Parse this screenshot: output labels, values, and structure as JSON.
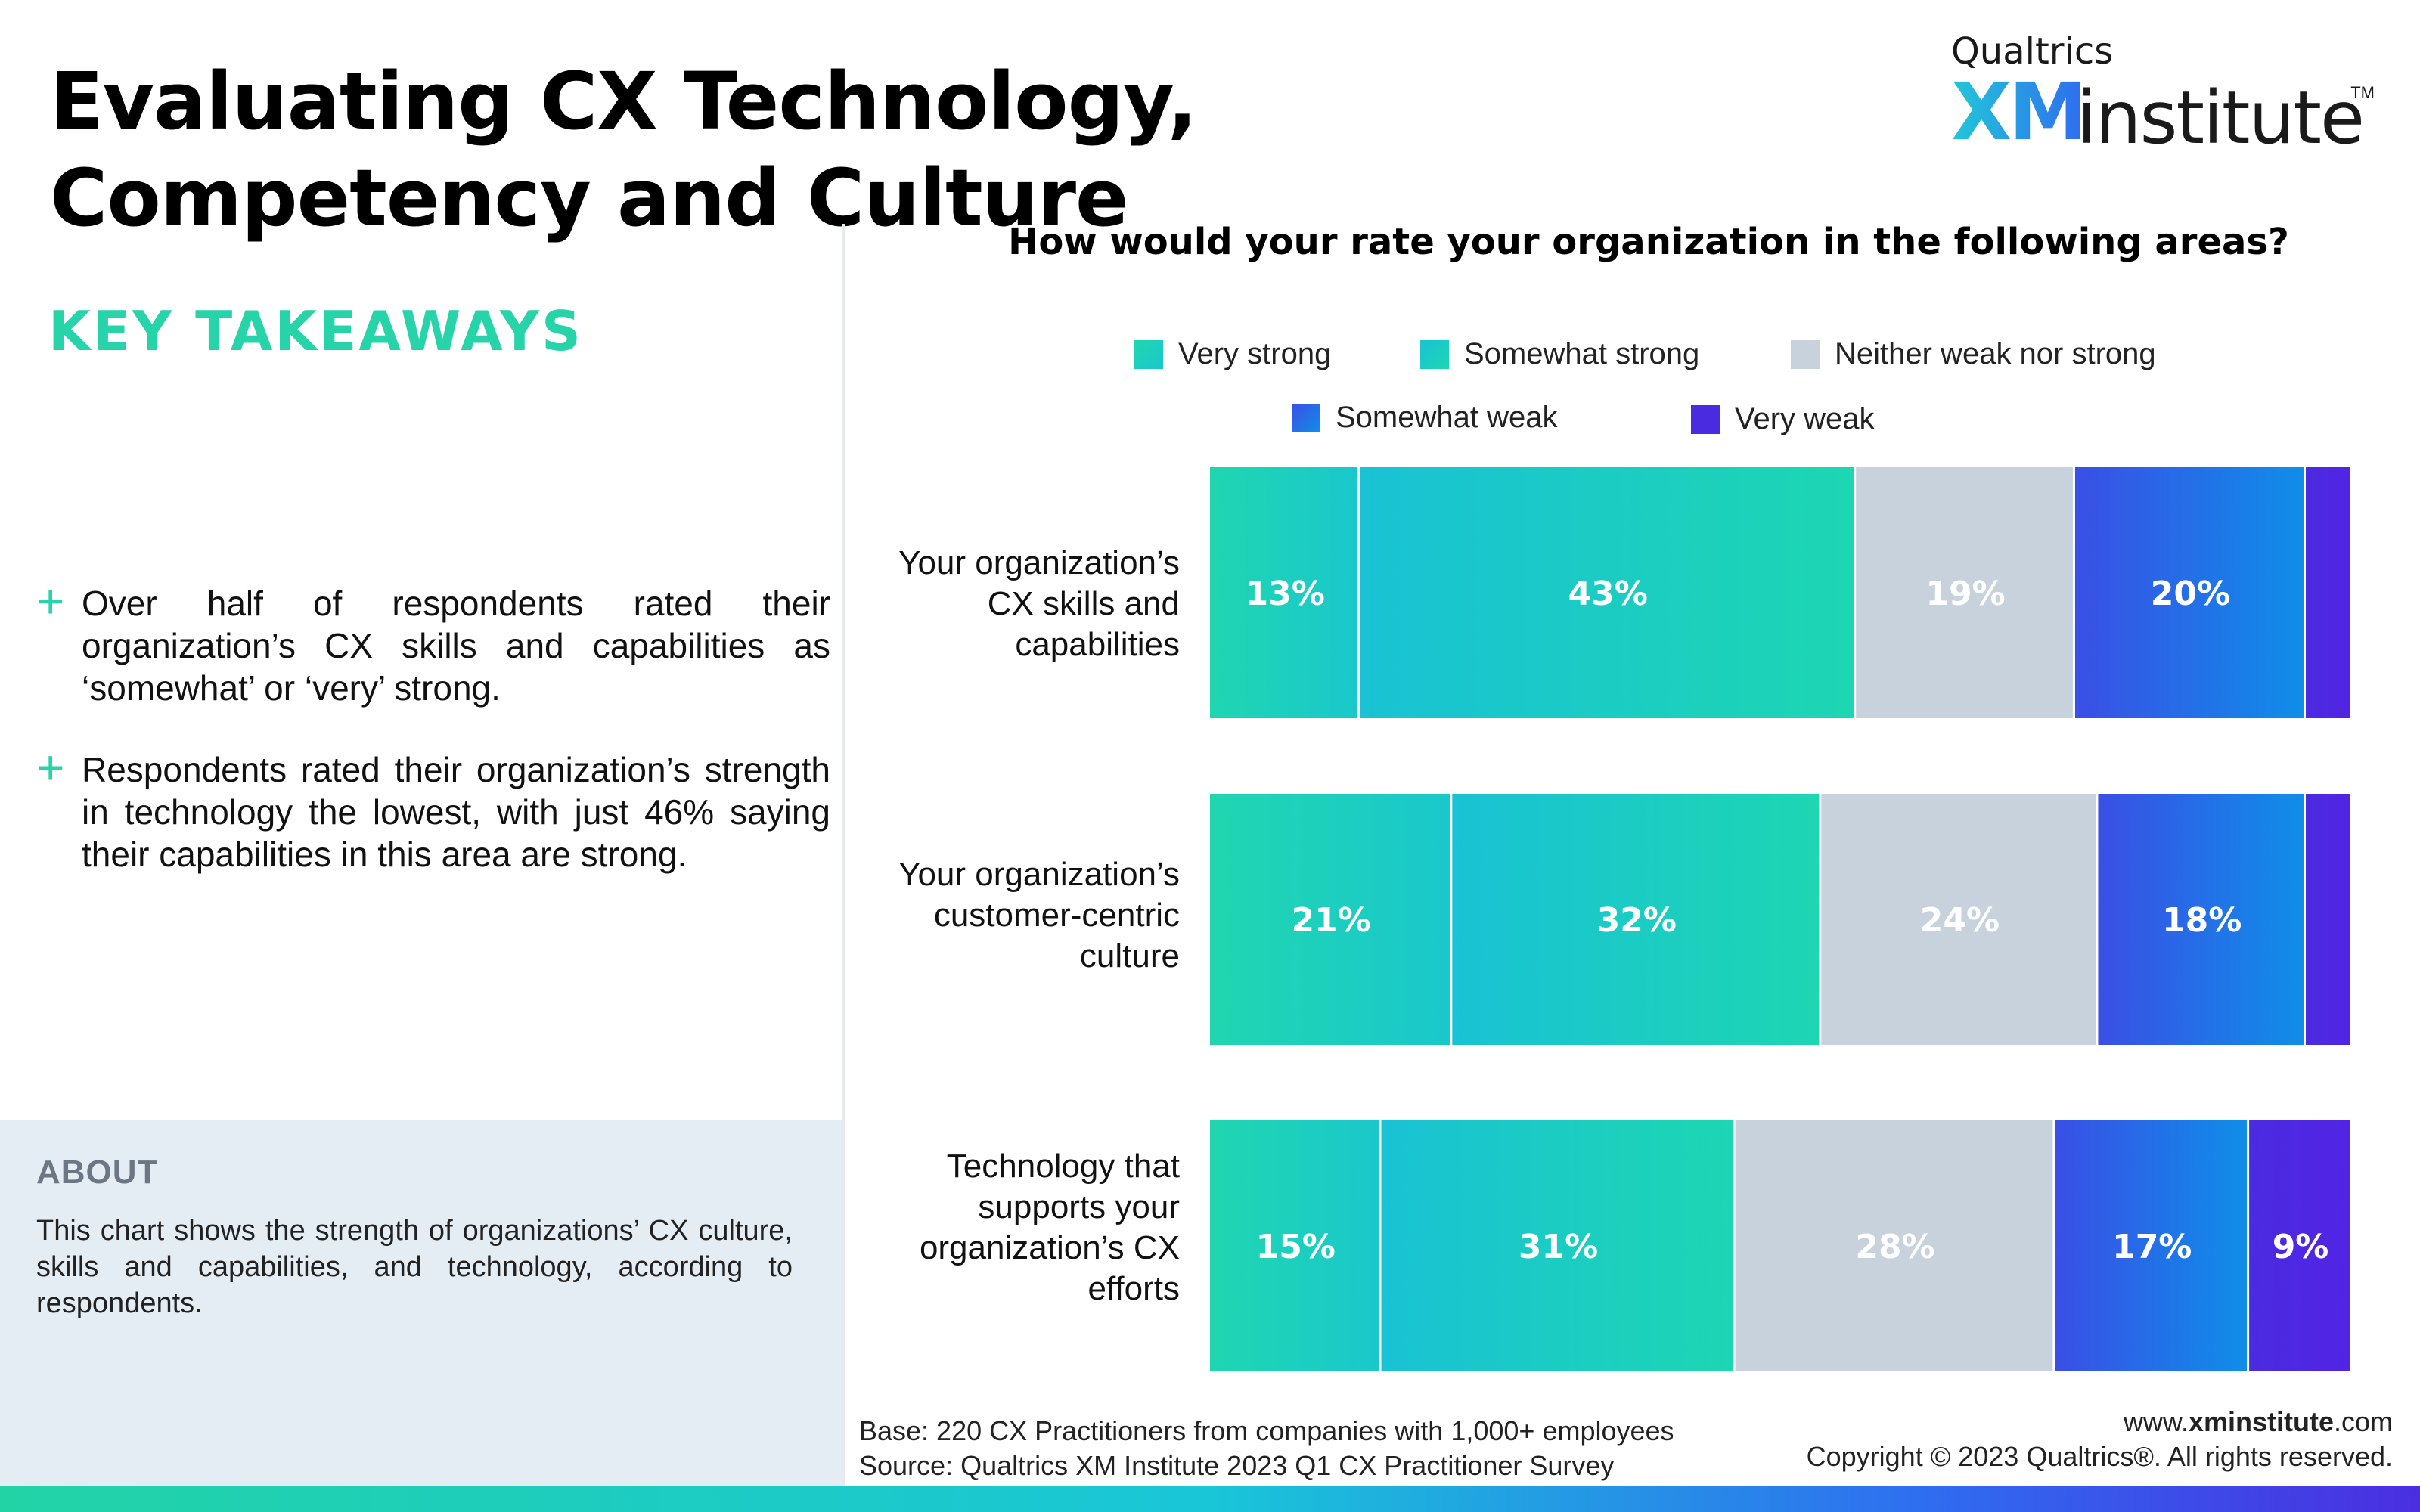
{
  "page": {
    "title": "Evaluating CX Technology, Competency and Culture",
    "logo": {
      "top": "Qualtrics",
      "xm": "XM",
      "institute": "institute",
      "tm": "TM"
    }
  },
  "takeaways": {
    "heading": "KEY TAKEAWAYS",
    "bullets": [
      "Over half of respondents rated their organization’s CX skills and capabilities as ‘somewhat’ or ‘very’ strong.",
      "Respondents rated their organization’s strength in technology the lowest, with just 46% saying their capabilities in this area are strong."
    ],
    "bullet_marker": "+"
  },
  "about": {
    "heading": "ABOUT",
    "text": "This chart shows the strength of organizations’ CX culture, skills and capabilities, and technology, according to respondents."
  },
  "chart_data": {
    "type": "bar",
    "orientation": "horizontal-stacked-100",
    "title": "How would your rate your organization in the following areas?",
    "categories": [
      "Your organization’s CX skills and capabilities",
      "Your organization’s customer-centric culture",
      "Technology that supports your organization’s CX efforts"
    ],
    "series": [
      {
        "name": "Very strong",
        "values": [
          13,
          21,
          15
        ],
        "labels": [
          "13%",
          "21%",
          "15%"
        ],
        "color": "#1fd6b0",
        "color2": "#1ac8cc"
      },
      {
        "name": "Somewhat strong",
        "values": [
          43,
          32,
          31
        ],
        "labels": [
          "43%",
          "32%",
          "31%"
        ],
        "color": "#19c2d4",
        "color2": "#1dd6b2"
      },
      {
        "name": "Neither weak nor strong",
        "values": [
          19,
          24,
          28
        ],
        "labels": [
          "19%",
          "24%",
          "28%"
        ],
        "color": "#c8d2dc",
        "color2": "#c8d2dc"
      },
      {
        "name": "Somewhat weak",
        "values": [
          20,
          18,
          17
        ],
        "labels": [
          "20%",
          "18%",
          "17%"
        ],
        "color": "#3a4fe6",
        "color2": "#0f8ee8"
      },
      {
        "name": "Very weak",
        "values": [
          4,
          4,
          9
        ],
        "labels": [
          "",
          "",
          "9%"
        ],
        "color": "#4a2be0",
        "color2": "#5224e4"
      }
    ],
    "xlim": [
      0,
      100
    ],
    "legend_position": "top"
  },
  "footer": {
    "base": "Base: 220 CX Practitioners from companies with 1,000+ employees",
    "source": "Source: Qualtrics XM Institute 2023 Q1 CX Practitioner Survey",
    "site_prefix": "www.",
    "site_bold": "xminstitute",
    "site_suffix": ".com",
    "copyright": "Copyright © 2023 Qualtrics®. All rights reserved."
  }
}
